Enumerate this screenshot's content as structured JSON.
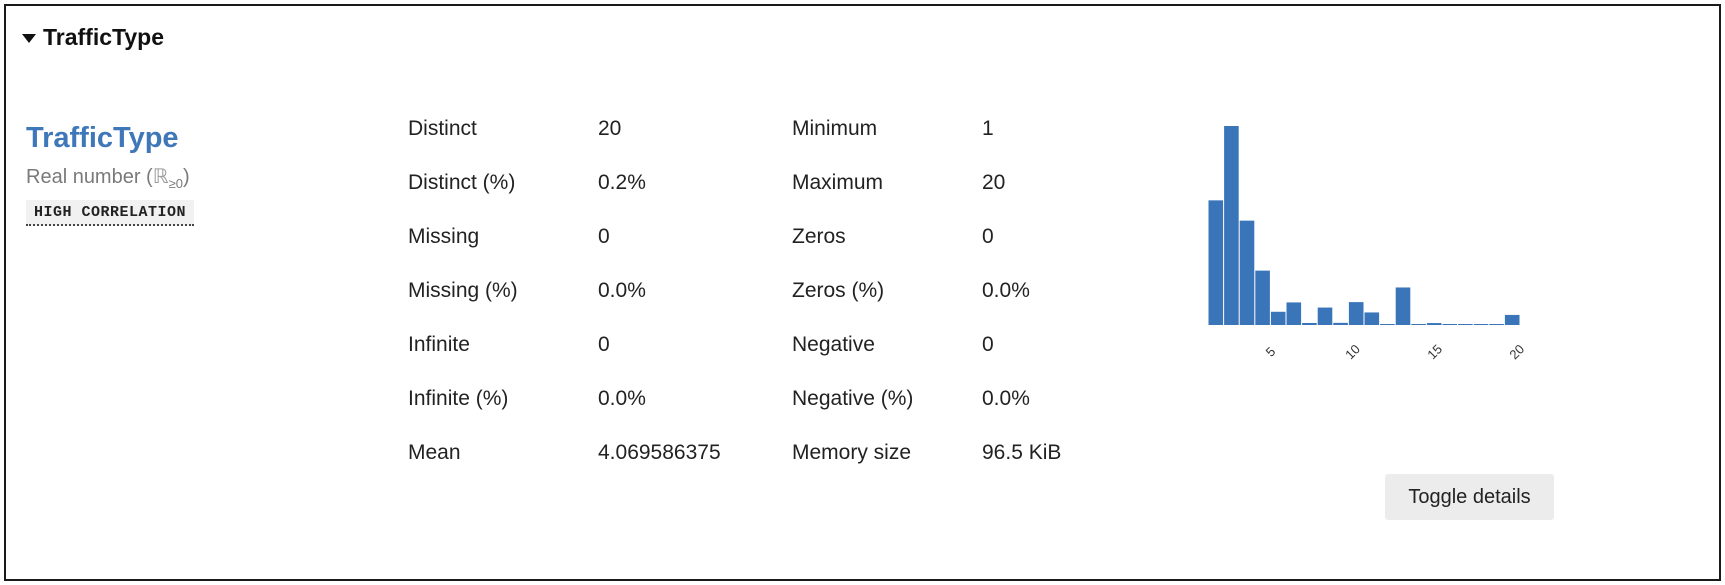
{
  "section": {
    "title": "TrafficType",
    "caret_icon": "caret-down-icon"
  },
  "variable": {
    "name": "TrafficType",
    "type_label": "Real number (",
    "type_symbol": "ℝ",
    "type_sub": "≥0",
    "type_close": ")",
    "badge": "HIGH CORRELATION"
  },
  "stats_left": [
    {
      "label": "Distinct",
      "value": "20"
    },
    {
      "label": "Distinct (%)",
      "value": "0.2%"
    },
    {
      "label": "Missing",
      "value": "0"
    },
    {
      "label": "Missing (%)",
      "value": "0.0%"
    },
    {
      "label": "Infinite",
      "value": "0"
    },
    {
      "label": "Infinite (%)",
      "value": "0.0%"
    },
    {
      "label": "Mean",
      "value": "4.069586375"
    }
  ],
  "stats_right": [
    {
      "label": "Minimum",
      "value": "1"
    },
    {
      "label": "Maximum",
      "value": "20"
    },
    {
      "label": "Zeros",
      "value": "0"
    },
    {
      "label": "Zeros (%)",
      "value": "0.0%"
    },
    {
      "label": "Negative",
      "value": "0"
    },
    {
      "label": "Negative (%)",
      "value": "0.0%"
    },
    {
      "label": "Memory size",
      "value": "96.5 KiB"
    }
  ],
  "chart_data": {
    "type": "bar",
    "x_ticks": [
      "5",
      "10",
      "15",
      "20"
    ],
    "tick_values": [
      5,
      10,
      15,
      20
    ],
    "bins": [
      {
        "x0": 1.0,
        "x1": 1.95,
        "count": 2451
      },
      {
        "x0": 1.95,
        "x1": 2.9,
        "count": 3913
      },
      {
        "x0": 2.9,
        "x1": 3.85,
        "count": 2052
      },
      {
        "x0": 3.85,
        "x1": 4.8,
        "count": 1069
      },
      {
        "x0": 4.8,
        "x1": 5.75,
        "count": 260
      },
      {
        "x0": 5.75,
        "x1": 6.7,
        "count": 444
      },
      {
        "x0": 6.7,
        "x1": 7.65,
        "count": 40
      },
      {
        "x0": 7.65,
        "x1": 8.6,
        "count": 343
      },
      {
        "x0": 8.6,
        "x1": 9.55,
        "count": 42
      },
      {
        "x0": 9.55,
        "x1": 10.5,
        "count": 450
      },
      {
        "x0": 10.5,
        "x1": 11.45,
        "count": 247
      },
      {
        "x0": 11.45,
        "x1": 12.4,
        "count": 1
      },
      {
        "x0": 12.4,
        "x1": 13.35,
        "count": 738
      },
      {
        "x0": 13.35,
        "x1": 14.3,
        "count": 13
      },
      {
        "x0": 14.3,
        "x1": 15.25,
        "count": 38
      },
      {
        "x0": 15.25,
        "x1": 16.2,
        "count": 3
      },
      {
        "x0": 16.2,
        "x1": 17.15,
        "count": 1
      },
      {
        "x0": 17.15,
        "x1": 18.1,
        "count": 10
      },
      {
        "x0": 18.1,
        "x1": 19.05,
        "count": 17
      },
      {
        "x0": 19.05,
        "x1": 20.0,
        "count": 198
      }
    ],
    "xlim": [
      1,
      20
    ],
    "color": "#3b75b9",
    "grid": false
  },
  "toggle_button": {
    "label": "Toggle details"
  }
}
